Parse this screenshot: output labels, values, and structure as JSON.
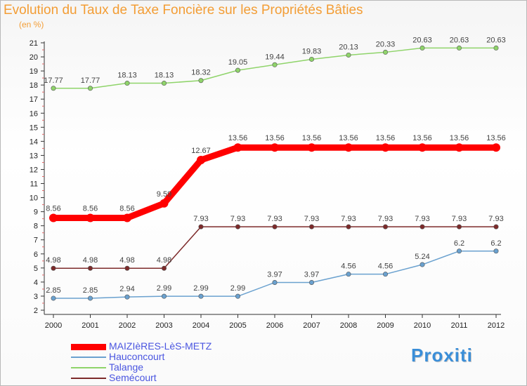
{
  "chart_data": {
    "type": "line",
    "title": "Evolution du Taux de Taxe Foncière sur les Propriétés Bâties",
    "subtitle": "(en %)",
    "xlabel": "",
    "ylabel": "",
    "x": [
      "2000",
      "2001",
      "2002",
      "2003",
      "2004",
      "2005",
      "2006",
      "2007",
      "2008",
      "2009",
      "2010",
      "2011",
      "2012"
    ],
    "ylim": [
      2,
      21
    ],
    "yticks": [
      "2",
      "3",
      "4",
      "5",
      "6",
      "7",
      "8",
      "9",
      "10",
      "11",
      "12",
      "13",
      "14",
      "15",
      "16",
      "17",
      "18",
      "19",
      "20",
      "21"
    ],
    "grid": false,
    "legend_position": "bottom-left",
    "series": [
      {
        "name": "MAIZIèRES-LèS-METZ",
        "color": "#ff0000",
        "values": [
          8.56,
          8.56,
          8.56,
          9.59,
          12.67,
          13.56,
          13.56,
          13.56,
          13.56,
          13.56,
          13.56,
          13.56,
          13.56
        ],
        "labels": [
          "8.56",
          "8.56",
          "8.56",
          "9.59",
          "12.67",
          "13.56",
          "13.56",
          "13.56",
          "13.56",
          "13.56",
          "13.56",
          "13.56",
          "13.56"
        ]
      },
      {
        "name": "Hauconcourt",
        "color": "#6aa1cf",
        "values": [
          2.85,
          2.85,
          2.94,
          2.99,
          2.99,
          2.99,
          3.97,
          3.97,
          4.56,
          4.56,
          5.24,
          6.2,
          6.2
        ],
        "labels": [
          "2.85",
          "2.85",
          "2.94",
          "2.99",
          "2.99",
          "2.99",
          "3.97",
          "3.97",
          "4.56",
          "4.56",
          "5.24",
          "6.2",
          "6.2"
        ]
      },
      {
        "name": "Talange",
        "color": "#8fd46a",
        "values": [
          17.77,
          17.77,
          18.13,
          18.13,
          18.32,
          19.05,
          19.44,
          19.83,
          20.13,
          20.33,
          20.63,
          20.63,
          20.63
        ],
        "labels": [
          "17.77",
          "17.77",
          "18.13",
          "18.13",
          "18.32",
          "19.05",
          "19.44",
          "19.83",
          "20.13",
          "20.33",
          "20.63",
          "20.63",
          "20.63"
        ]
      },
      {
        "name": "Semécourt",
        "color": "#7d2a2a",
        "values": [
          4.98,
          4.98,
          4.98,
          4.98,
          7.93,
          7.93,
          7.93,
          7.93,
          7.93,
          7.93,
          7.93,
          7.93,
          7.93
        ],
        "labels": [
          "4.98",
          "4.98",
          "4.98",
          "4.98",
          "7.93",
          "7.93",
          "7.93",
          "7.93",
          "7.93",
          "7.93",
          "7.93",
          "7.93",
          "7.93"
        ]
      }
    ]
  },
  "legend": {
    "items": [
      {
        "label": "MAIZIèRES-LèS-METZ",
        "color": "#ff0000"
      },
      {
        "label": "Hauconcourt",
        "color": "#6aa1cf"
      },
      {
        "label": "Talange",
        "color": "#8fd46a"
      },
      {
        "label": "Semécourt",
        "color": "#7d2a2a"
      }
    ]
  },
  "brand": {
    "name": "Proxiti"
  }
}
